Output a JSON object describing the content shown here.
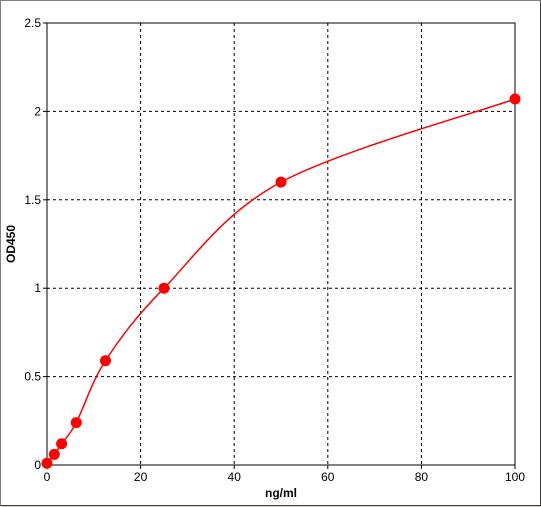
{
  "chart_data": {
    "type": "scatter",
    "title": "",
    "xlabel": "ng/ml",
    "ylabel": "OD450",
    "xlim": [
      0,
      100
    ],
    "ylim": [
      0,
      2.5
    ],
    "x_ticks": [
      "0",
      "20",
      "40",
      "60",
      "80",
      "100"
    ],
    "y_ticks": [
      "0",
      "0.5",
      "1",
      "1.5",
      "2",
      "2.5"
    ],
    "grid": true,
    "legend": "none",
    "series": [
      {
        "color": "#ff0000",
        "x": [
          0,
          1.56,
          3.12,
          6.25,
          12.5,
          25,
          50,
          100
        ],
        "y": [
          0.01,
          0.06,
          0.12,
          0.24,
          0.59,
          1.0,
          1.6,
          2.07
        ],
        "fit_curve": true
      }
    ]
  }
}
